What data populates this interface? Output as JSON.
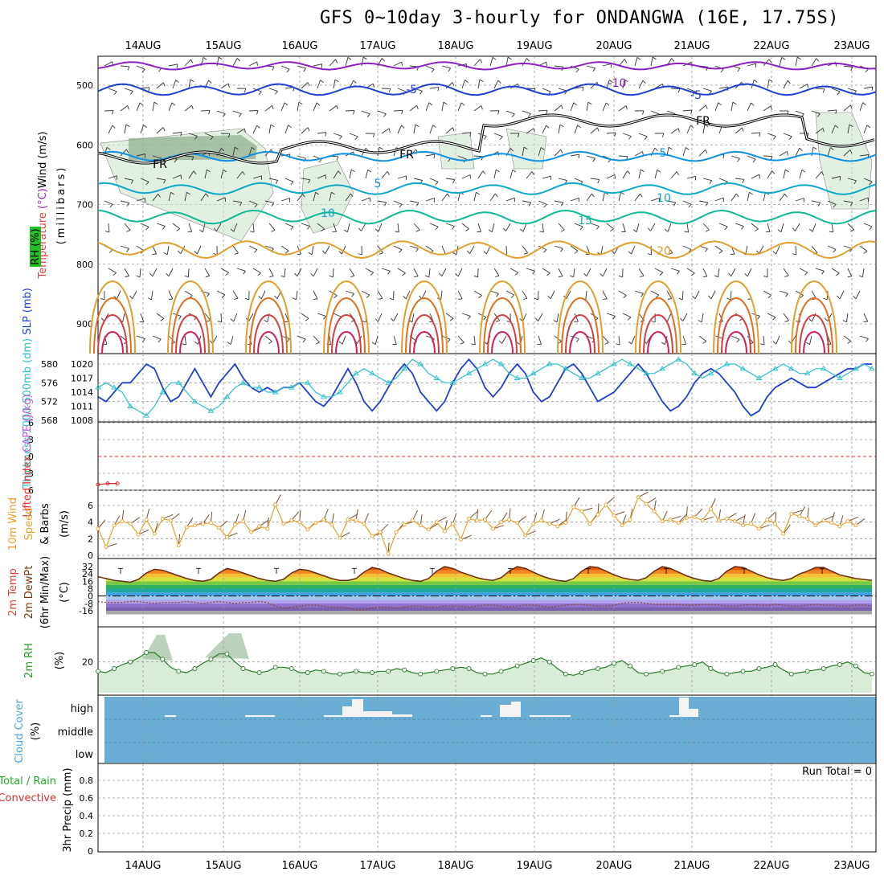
{
  "title": "GFS 0~10day 3-hourly for ONDANGWA (16E, 17.75S)",
  "dates": [
    "14AUG",
    "15AUG",
    "16AUG",
    "17AUG",
    "18AUG",
    "19AUG",
    "20AUG",
    "21AUG",
    "22AUG",
    "23AUG"
  ],
  "chart_data": [
    {
      "type": "contour",
      "panel": "upper_air",
      "ylabels": [
        "Wind (m/s)",
        "Temperature (°C)",
        "(millibars)",
        "RH (%)"
      ],
      "yticks": [
        "500",
        "600",
        "700",
        "800",
        "900"
      ],
      "isotherm_labels": [
        "-10",
        "-5",
        "-5",
        "FR",
        "FR",
        "FR",
        "5",
        "5",
        "10",
        "10",
        "15",
        "20"
      ]
    },
    {
      "type": "line",
      "panel": "thickness_slp",
      "ylabels": [
        "Thickness 1000-500mb (dm)",
        "SLP (mb)"
      ],
      "left_ticks": [
        "580",
        "576",
        "572",
        "568"
      ],
      "right_ticks": [
        "1020",
        "1017",
        "1014",
        "1011",
        "1008"
      ],
      "series": [
        {
          "name": "SLP (mb)",
          "color": "#1f3fd0",
          "values": [
            1013,
            1012,
            1014,
            1016,
            1016,
            1018,
            1020,
            1019,
            1015,
            1012,
            1013,
            1016,
            1019,
            1016,
            1013,
            1016,
            1018,
            1020,
            1017,
            1015,
            1014,
            1015,
            1014,
            1015,
            1015,
            1016,
            1014,
            1012,
            1011,
            1013,
            1016,
            1019,
            1016,
            1012,
            1010,
            1012,
            1015,
            1018,
            1020,
            1018,
            1014,
            1012,
            1010,
            1012,
            1016,
            1019,
            1021,
            1019,
            1015,
            1013,
            1015,
            1018,
            1020,
            1018,
            1014,
            1012,
            1013,
            1016,
            1019,
            1020,
            1018,
            1015,
            1012,
            1013,
            1014,
            1016,
            1018,
            1020,
            1018,
            1015,
            1012,
            1010,
            1011,
            1013,
            1016,
            1018,
            1019,
            1018,
            1016,
            1014,
            1011,
            1009,
            1010,
            1013,
            1015,
            1016,
            1017,
            1016,
            1015,
            1015,
            1016,
            1017,
            1018,
            1019,
            1019,
            1020,
            1020
          ]
        },
        {
          "name": "Thickness 1000-500mb (dm)",
          "color": "#30c0c8",
          "values": [
            575,
            576,
            575,
            574,
            571,
            570,
            569,
            571,
            574,
            576,
            576,
            574,
            572,
            571,
            570,
            571,
            573,
            575,
            576,
            575,
            575,
            574,
            574,
            575,
            575,
            576,
            576,
            574,
            573,
            573,
            574,
            576,
            578,
            579,
            578,
            577,
            576,
            577,
            579,
            581,
            580,
            578,
            577,
            576,
            576,
            577,
            578,
            579,
            580,
            581,
            580,
            578,
            577,
            577,
            578,
            579,
            580,
            580,
            579,
            578,
            577,
            577,
            578,
            579,
            580,
            581,
            580,
            579,
            578,
            578,
            579,
            580,
            581,
            580,
            578,
            577,
            578,
            579,
            580,
            580,
            579,
            578,
            577,
            578,
            579,
            580,
            579,
            578,
            578,
            579,
            579,
            578,
            577,
            578,
            579,
            580,
            579
          ]
        }
      ]
    },
    {
      "type": "line",
      "panel": "lifted_index_cape",
      "ylabels": [
        "Lifted Index",
        "CAPE (J/kg)"
      ],
      "yticks": [
        "-6",
        "-3",
        "0",
        "3",
        "6"
      ],
      "series": [
        {
          "name": "Lifted Index",
          "color": "#e03030",
          "values": [
            5,
            4.8,
            4.8
          ]
        }
      ]
    },
    {
      "type": "line",
      "panel": "wind_10m",
      "ylabels": [
        "10m Wind",
        "Speed",
        "& Barbs",
        "(m/s)"
      ],
      "yticks": [
        "0",
        "2",
        "4",
        "6"
      ],
      "series": [
        {
          "name": "10m Wind Speed",
          "color": "#e8a030",
          "values": [
            3.2,
            1,
            3.6,
            4.1,
            3.8,
            2.5,
            4.3,
            2.6,
            4.4,
            4.2,
            1.2,
            3.4,
            3.6,
            3.8,
            3.9,
            3.3,
            2.2,
            3.7,
            4.1,
            2.8,
            3.5,
            3.2,
            6.1,
            3.8,
            4.2,
            4.0,
            3.1,
            3.9,
            4.3,
            3.7,
            2.1,
            4.3,
            4.2,
            3.8,
            2.3,
            2.8,
            0.2,
            2.8,
            3.7,
            4.2,
            3.6,
            3.1,
            4.0,
            2.9,
            3.8,
            1.9,
            4.4,
            4.2,
            4.3,
            3.2,
            4.0,
            4.3,
            3.9,
            2.4,
            3.8,
            4.2,
            3.8,
            3.5,
            3.9,
            5.8,
            5.3,
            3.8,
            4.9,
            6.1,
            4.8,
            3.6,
            4.3,
            7.0,
            6.2,
            5.3,
            4.1,
            4.3,
            3.9,
            4.5,
            4.6,
            4.2,
            5.6,
            4.2,
            4.4,
            4.1,
            3.6,
            3.8,
            3.2,
            4.3,
            3.8,
            2.6,
            5.0,
            4.7,
            4.4,
            3.6,
            4.2,
            3.9,
            3.5,
            4.1,
            3.6
          ]
        }
      ]
    },
    {
      "type": "area",
      "panel": "temp_2m",
      "ylabels": [
        "2m Temp",
        "2m DewPt",
        "(6hr Min/Max)",
        "(°C)"
      ],
      "yticks": [
        "32",
        "24",
        "16",
        "8",
        "0",
        "-8",
        "-16"
      ],
      "series": [
        {
          "name": "2m Temp",
          "color": "#7a3a10",
          "values": [
            21,
            19,
            17,
            16,
            15,
            18,
            25,
            29,
            28,
            25,
            22,
            19,
            17,
            16,
            18,
            25,
            30,
            28,
            25,
            22,
            19,
            17,
            16,
            18,
            25,
            29,
            28,
            25,
            22,
            19,
            17,
            17,
            19,
            26,
            31,
            29,
            25,
            22,
            19,
            17,
            16,
            19,
            27,
            32,
            30,
            26,
            23,
            20,
            18,
            17,
            20,
            27,
            32,
            30,
            26,
            22,
            19,
            17,
            16,
            19,
            27,
            32,
            31,
            27,
            23,
            20,
            18,
            17,
            20,
            27,
            32,
            30,
            26,
            22,
            19,
            17,
            16,
            19,
            27,
            32,
            31,
            27,
            23,
            20,
            18,
            17,
            19,
            24,
            27,
            31,
            31,
            27,
            23,
            21,
            19,
            18,
            17
          ]
        },
        {
          "name": "2m DewPt",
          "color": "#7a3a10",
          "values": [
            -6,
            -7,
            -7,
            -7,
            -6,
            -6,
            -7,
            -8,
            -7,
            -7,
            -7,
            -6,
            -7,
            -8,
            -7,
            -6,
            -7,
            -8,
            -7,
            -7,
            -6,
            -7,
            -11,
            -13,
            -12,
            -11,
            -10,
            -10,
            -11,
            -12,
            -12,
            -13,
            -15,
            -15,
            -13,
            -12,
            -12,
            -13,
            -12,
            -11,
            -11,
            -12,
            -12,
            -11,
            -11,
            -11,
            -12,
            -11,
            -10,
            -10,
            -11,
            -12,
            -11,
            -10,
            -10,
            -11,
            -12,
            -11,
            -10,
            -9,
            -9,
            -10,
            -11,
            -11,
            -10,
            -8,
            -7,
            -7,
            -8,
            -9,
            -9,
            -9,
            -9,
            -10,
            -10,
            -9,
            -9,
            -10,
            -11,
            -11,
            -10,
            -9,
            -10,
            -10,
            -9,
            -10,
            -11,
            -11,
            -10,
            -9,
            -10,
            -10,
            -11,
            -11,
            -10,
            -10,
            -11
          ]
        }
      ]
    },
    {
      "type": "area",
      "panel": "rh_2m",
      "ylabels": [
        "2m RH",
        "(%)"
      ],
      "yticks": [
        "20"
      ],
      "series": [
        {
          "name": "2m RH",
          "color": "#2a8a2a",
          "values": [
            13,
            12,
            15,
            18,
            20,
            23,
            27,
            27,
            22,
            16,
            13,
            12,
            15,
            19,
            22,
            26,
            26,
            20,
            15,
            13,
            12,
            13,
            16,
            16,
            15,
            12,
            12,
            14,
            13,
            11,
            11,
            12,
            13,
            12,
            12,
            13,
            13,
            15,
            14,
            12,
            11,
            12,
            13,
            14,
            15,
            16,
            15,
            12,
            11,
            11,
            13,
            15,
            17,
            19,
            21,
            23,
            20,
            15,
            11,
            10,
            12,
            14,
            15,
            16,
            19,
            21,
            17,
            12,
            11,
            12,
            13,
            14,
            16,
            17,
            18,
            20,
            15,
            12,
            11,
            12,
            13,
            13,
            15,
            16,
            18,
            14,
            11,
            12,
            13,
            14,
            15,
            17,
            18,
            20,
            17,
            12,
            11
          ]
        }
      ]
    },
    {
      "type": "bar",
      "panel": "cloud_cover",
      "ylabels": [
        "Cloud Cover",
        "(%)"
      ],
      "yticks": [
        "high",
        "middle",
        "low"
      ]
    },
    {
      "type": "bar",
      "panel": "precip",
      "ylabels": [
        "3hr Precip (mm)",
        "Total / Rain",
        "Convective"
      ],
      "yticks": [
        "0.8",
        "0.6",
        "0.4",
        "0.2",
        "0"
      ],
      "annotation": "Run Total = 0"
    }
  ],
  "colors": {
    "slp": "#1f3fd0",
    "thickness": "#30c0c8",
    "cloud": "#6aaed6",
    "wind_speed": "#e8a030",
    "rh": "#2a8a2a",
    "precip_label": "#22aa22",
    "convective_label": "#e03030"
  }
}
